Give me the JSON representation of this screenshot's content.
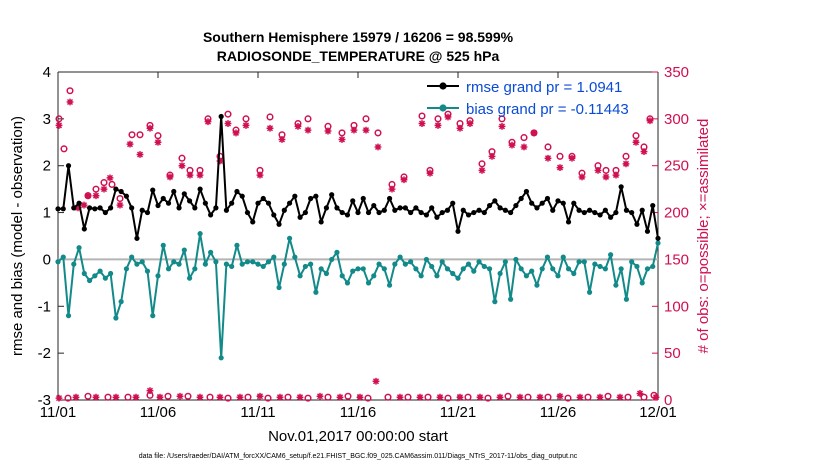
{
  "chart_data": {
    "type": "line",
    "title": "Southern Hemisphere 15979 / 16206 = 98.599%",
    "subtitle": "RADIOSONDE_TEMPERATURE @ 525 hPa",
    "xlabel": "Nov.01,2017 00:00:00 start",
    "ylabel_left": "rmse and bias (model - observation)",
    "ylabel_right": "# of obs: o=possible; ×=assimilated",
    "footnote": "data file: /Users/raeder/DAI/ATM_forcXX/CAM6_setup/f.e21.FHIST_BGC.f09_025.CAM6assim.011/Diags_NTrS_2017-11/obs_diag_output.nc",
    "xlim": [
      0,
      30
    ],
    "ylim_left": [
      -3,
      4
    ],
    "ylim_right": [
      0,
      350
    ],
    "x_tick_labels": [
      "11/01",
      "11/06",
      "11/11",
      "11/16",
      "11/21",
      "11/26",
      "12/01"
    ],
    "x_tick_values": [
      0,
      5,
      10,
      15,
      20,
      25,
      30
    ],
    "y_left_ticks": [
      -3,
      -2,
      -1,
      0,
      1,
      2,
      3,
      4
    ],
    "y_right_ticks": [
      0,
      50,
      100,
      150,
      200,
      250,
      300,
      350
    ],
    "colors": {
      "rmse": "#000000",
      "bias": "#138a8a",
      "obs": "#d0104f",
      "legend_text": "#0a4bd6",
      "zero_line": "#b4b4b4"
    },
    "series": [
      {
        "name": "rmse grand pr = 1.0941",
        "values": [
          1.08,
          1.08,
          2.0,
          1.1,
          1.2,
          0.65,
          1.1,
          1.08,
          1.1,
          1.0,
          1.1,
          1.5,
          1.45,
          1.35,
          1.1,
          0.45,
          1.05,
          1.0,
          1.48,
          1.15,
          1.3,
          1.2,
          1.45,
          1.1,
          1.4,
          1.25,
          1.1,
          1.5,
          1.2,
          0.95,
          1.1,
          3.05,
          1.05,
          1.2,
          1.45,
          1.35,
          1.0,
          0.8,
          1.2,
          1.3,
          1.2,
          0.95,
          0.75,
          1.05,
          1.2,
          1.35,
          0.9,
          1.0,
          1.3,
          1.35,
          0.8,
          1.1,
          1.38,
          1.1,
          1.0,
          0.95,
          1.25,
          1.0,
          1.3,
          1.0,
          1.15,
          1.0,
          1.05,
          1.3,
          1.05,
          1.1,
          1.1,
          1.0,
          1.1,
          1.0,
          0.95,
          1.1,
          0.9,
          1.0,
          1.05,
          1.2,
          0.6,
          1.05,
          0.95,
          1.0,
          1.05,
          1.0,
          1.15,
          1.25,
          1.1,
          1.05,
          1.0,
          1.15,
          1.3,
          1.45,
          1.2,
          1.1,
          1.2,
          1.3,
          1.05,
          1.25,
          1.2,
          0.8,
          1.2,
          1.05,
          1.0,
          1.05,
          1.0,
          0.95,
          1.05,
          0.9,
          1.0,
          1.55,
          1.05,
          1.0,
          0.75,
          1.05,
          0.6,
          1.15,
          0.45
        ]
      },
      {
        "name": "bias grand pr = -0.11443",
        "values": [
          -0.05,
          0.05,
          -1.2,
          -0.1,
          0.25,
          -0.3,
          -0.45,
          -0.35,
          -0.25,
          -0.4,
          -0.3,
          -1.25,
          -0.9,
          -0.2,
          0.05,
          -0.1,
          -0.05,
          -0.25,
          -1.2,
          -0.35,
          0.3,
          -0.2,
          -0.05,
          -0.1,
          0.2,
          -0.4,
          -0.2,
          0.55,
          -0.1,
          0.15,
          -0.05,
          -2.1,
          -0.1,
          -0.15,
          0.3,
          -0.1,
          -0.05,
          -0.05,
          -0.1,
          -0.15,
          -0.05,
          0.05,
          -0.6,
          -0.1,
          0.45,
          0.05,
          -0.35,
          -0.15,
          -0.1,
          -0.7,
          -0.2,
          -0.3,
          0.0,
          0.15,
          -0.35,
          -0.5,
          -0.25,
          -0.2,
          -0.2,
          -0.5,
          -0.35,
          -0.1,
          -0.2,
          -0.55,
          -0.1,
          0.05,
          -0.1,
          -0.05,
          -0.2,
          -0.35,
          0.0,
          -0.15,
          -0.35,
          -0.05,
          -0.2,
          -0.3,
          -0.4,
          -0.2,
          -0.1,
          -0.25,
          -0.05,
          -0.15,
          -0.2,
          -0.9,
          -0.3,
          -0.05,
          -0.85,
          0.0,
          -0.2,
          -0.35,
          -0.25,
          -0.55,
          -0.2,
          0.05,
          -0.2,
          -0.35,
          0.05,
          -0.2,
          -0.3,
          -0.05,
          -0.05,
          -0.7,
          -0.1,
          -0.15,
          -0.2,
          0.1,
          -0.55,
          -0.2,
          -0.85,
          -0.05,
          -0.15,
          -0.5,
          -0.2,
          -0.15,
          0.35
        ]
      }
    ],
    "obs_possible": [
      {
        "x": 0.05,
        "y": 300
      },
      {
        "x": 0.3,
        "y": 268
      },
      {
        "x": 0.6,
        "y": 330
      },
      {
        "x": 1.5,
        "y": 218
      },
      {
        "x": 1.9,
        "y": 225
      },
      {
        "x": 2.3,
        "y": 232
      },
      {
        "x": 2.7,
        "y": 230
      },
      {
        "x": 3.1,
        "y": 215
      },
      {
        "x": 3.7,
        "y": 283
      },
      {
        "x": 4.1,
        "y": 283
      },
      {
        "x": 4.6,
        "y": 293
      },
      {
        "x": 5.0,
        "y": 282
      },
      {
        "x": 5.6,
        "y": 240
      },
      {
        "x": 6.2,
        "y": 258
      },
      {
        "x": 6.6,
        "y": 245
      },
      {
        "x": 7.1,
        "y": 245
      },
      {
        "x": 7.5,
        "y": 300
      },
      {
        "x": 8.1,
        "y": 260
      },
      {
        "x": 8.5,
        "y": 305
      },
      {
        "x": 8.9,
        "y": 288
      },
      {
        "x": 9.4,
        "y": 300
      },
      {
        "x": 10.1,
        "y": 245
      },
      {
        "x": 10.6,
        "y": 302
      },
      {
        "x": 11.2,
        "y": 283
      },
      {
        "x": 12.0,
        "y": 295
      },
      {
        "x": 12.5,
        "y": 300
      },
      {
        "x": 13.5,
        "y": 292
      },
      {
        "x": 14.2,
        "y": 285
      },
      {
        "x": 14.8,
        "y": 293
      },
      {
        "x": 15.4,
        "y": 300
      },
      {
        "x": 16.0,
        "y": 285
      },
      {
        "x": 16.7,
        "y": 230
      },
      {
        "x": 17.3,
        "y": 238
      },
      {
        "x": 18.2,
        "y": 303
      },
      {
        "x": 18.6,
        "y": 245
      },
      {
        "x": 19.0,
        "y": 300
      },
      {
        "x": 19.5,
        "y": 305
      },
      {
        "x": 20.1,
        "y": 295
      },
      {
        "x": 20.6,
        "y": 298
      },
      {
        "x": 21.2,
        "y": 252
      },
      {
        "x": 21.7,
        "y": 265
      },
      {
        "x": 22.2,
        "y": 300
      },
      {
        "x": 22.7,
        "y": 275
      },
      {
        "x": 23.3,
        "y": 280
      },
      {
        "x": 23.8,
        "y": 285
      },
      {
        "x": 24.5,
        "y": 270
      },
      {
        "x": 25.1,
        "y": 260
      },
      {
        "x": 25.7,
        "y": 260
      },
      {
        "x": 26.2,
        "y": 242
      },
      {
        "x": 27.0,
        "y": 250
      },
      {
        "x": 27.4,
        "y": 245
      },
      {
        "x": 27.9,
        "y": 245
      },
      {
        "x": 28.4,
        "y": 260
      },
      {
        "x": 28.9,
        "y": 282
      },
      {
        "x": 29.3,
        "y": 270
      },
      {
        "x": 29.6,
        "y": 300
      }
    ],
    "obs_assimilated": [
      {
        "x": 0.05,
        "y": 293
      },
      {
        "x": 0.6,
        "y": 318
      },
      {
        "x": 1.0,
        "y": 205
      },
      {
        "x": 1.3,
        "y": 208
      },
      {
        "x": 1.5,
        "y": 218
      },
      {
        "x": 1.9,
        "y": 218
      },
      {
        "x": 2.3,
        "y": 225
      },
      {
        "x": 2.6,
        "y": 237
      },
      {
        "x": 3.1,
        "y": 208
      },
      {
        "x": 3.6,
        "y": 273
      },
      {
        "x": 4.1,
        "y": 262
      },
      {
        "x": 4.6,
        "y": 290
      },
      {
        "x": 5.0,
        "y": 275
      },
      {
        "x": 5.6,
        "y": 238
      },
      {
        "x": 6.2,
        "y": 250
      },
      {
        "x": 6.6,
        "y": 240
      },
      {
        "x": 7.1,
        "y": 240
      },
      {
        "x": 7.5,
        "y": 297
      },
      {
        "x": 8.1,
        "y": 255
      },
      {
        "x": 8.5,
        "y": 295
      },
      {
        "x": 8.9,
        "y": 285
      },
      {
        "x": 9.4,
        "y": 293
      },
      {
        "x": 10.1,
        "y": 240
      },
      {
        "x": 10.6,
        "y": 290
      },
      {
        "x": 11.2,
        "y": 278
      },
      {
        "x": 12.0,
        "y": 292
      },
      {
        "x": 12.5,
        "y": 288
      },
      {
        "x": 13.5,
        "y": 287
      },
      {
        "x": 14.2,
        "y": 278
      },
      {
        "x": 14.8,
        "y": 288
      },
      {
        "x": 15.4,
        "y": 288
      },
      {
        "x": 16.0,
        "y": 270
      },
      {
        "x": 16.7,
        "y": 225
      },
      {
        "x": 17.3,
        "y": 235
      },
      {
        "x": 18.2,
        "y": 295
      },
      {
        "x": 18.6,
        "y": 242
      },
      {
        "x": 19.0,
        "y": 293
      },
      {
        "x": 19.5,
        "y": 302
      },
      {
        "x": 20.1,
        "y": 290
      },
      {
        "x": 20.6,
        "y": 295
      },
      {
        "x": 21.2,
        "y": 245
      },
      {
        "x": 21.7,
        "y": 260
      },
      {
        "x": 22.2,
        "y": 292
      },
      {
        "x": 22.7,
        "y": 272
      },
      {
        "x": 23.3,
        "y": 270
      },
      {
        "x": 23.8,
        "y": 285
      },
      {
        "x": 24.5,
        "y": 258
      },
      {
        "x": 25.1,
        "y": 248
      },
      {
        "x": 25.7,
        "y": 258
      },
      {
        "x": 26.2,
        "y": 238
      },
      {
        "x": 27.0,
        "y": 245
      },
      {
        "x": 27.4,
        "y": 238
      },
      {
        "x": 27.9,
        "y": 240
      },
      {
        "x": 28.4,
        "y": 252
      },
      {
        "x": 28.9,
        "y": 275
      },
      {
        "x": 29.3,
        "y": 265
      },
      {
        "x": 29.6,
        "y": 298
      }
    ],
    "obs_bottom_possible": [
      {
        "x": 0.5,
        "y": 2
      },
      {
        "x": 1.5,
        "y": 4
      },
      {
        "x": 2.5,
        "y": 3
      },
      {
        "x": 3.5,
        "y": 3
      },
      {
        "x": 4.6,
        "y": 5
      },
      {
        "x": 5.5,
        "y": 4
      },
      {
        "x": 6.5,
        "y": 4
      },
      {
        "x": 7.6,
        "y": 3
      },
      {
        "x": 8.5,
        "y": 2
      },
      {
        "x": 9.5,
        "y": 3
      },
      {
        "x": 10.5,
        "y": 2
      },
      {
        "x": 11.5,
        "y": 3
      },
      {
        "x": 12.5,
        "y": 2
      },
      {
        "x": 13.5,
        "y": 3
      },
      {
        "x": 14.5,
        "y": 4
      },
      {
        "x": 15.5,
        "y": 2
      },
      {
        "x": 16.5,
        "y": 3
      },
      {
        "x": 17.5,
        "y": 3
      },
      {
        "x": 18.5,
        "y": 3
      },
      {
        "x": 19.5,
        "y": 2
      },
      {
        "x": 20.5,
        "y": 3
      },
      {
        "x": 21.5,
        "y": 2
      },
      {
        "x": 22.5,
        "y": 4
      },
      {
        "x": 23.5,
        "y": 3
      },
      {
        "x": 24.5,
        "y": 3
      },
      {
        "x": 25.5,
        "y": 2
      },
      {
        "x": 26.5,
        "y": 3
      },
      {
        "x": 27.5,
        "y": 4
      },
      {
        "x": 28.5,
        "y": 3
      },
      {
        "x": 29.3,
        "y": 3
      },
      {
        "x": 29.8,
        "y": 5
      }
    ],
    "obs_bottom_assimilated": [
      {
        "x": 0.05,
        "y": 2
      },
      {
        "x": 0.9,
        "y": 3
      },
      {
        "x": 1.9,
        "y": 3
      },
      {
        "x": 2.9,
        "y": 3
      },
      {
        "x": 3.9,
        "y": 3
      },
      {
        "x": 4.6,
        "y": 10
      },
      {
        "x": 5.1,
        "y": 3
      },
      {
        "x": 6.1,
        "y": 4
      },
      {
        "x": 7.1,
        "y": 3
      },
      {
        "x": 8.1,
        "y": 3
      },
      {
        "x": 9.1,
        "y": 3
      },
      {
        "x": 10.1,
        "y": 4
      },
      {
        "x": 11.1,
        "y": 3
      },
      {
        "x": 12.1,
        "y": 3
      },
      {
        "x": 13.1,
        "y": 4
      },
      {
        "x": 14.1,
        "y": 3
      },
      {
        "x": 15.1,
        "y": 3
      },
      {
        "x": 15.9,
        "y": 20
      },
      {
        "x": 17.1,
        "y": 3
      },
      {
        "x": 18.1,
        "y": 3
      },
      {
        "x": 19.1,
        "y": 3
      },
      {
        "x": 20.1,
        "y": 3
      },
      {
        "x": 21.1,
        "y": 3
      },
      {
        "x": 22.1,
        "y": 3
      },
      {
        "x": 23.1,
        "y": 3
      },
      {
        "x": 24.1,
        "y": 3
      },
      {
        "x": 25.1,
        "y": 4
      },
      {
        "x": 26.1,
        "y": 3
      },
      {
        "x": 27.1,
        "y": 3
      },
      {
        "x": 28.1,
        "y": 3
      },
      {
        "x": 29.1,
        "y": 7
      },
      {
        "x": 29.9,
        "y": 3
      }
    ],
    "legend_position": "top-right"
  }
}
